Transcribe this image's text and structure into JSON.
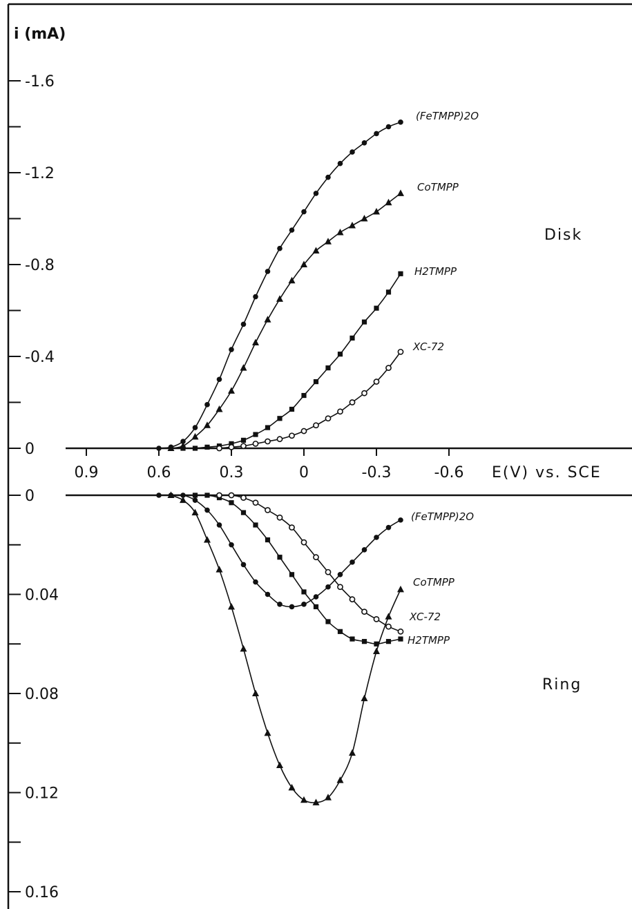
{
  "chart_data": [
    {
      "panel": "Disk",
      "type": "line",
      "title": "Disk",
      "ylabel": "i (mA)",
      "xlabel": "E(V) vs. SCE",
      "x_ticks": [
        "0.9",
        "0.6",
        "0.3",
        "0",
        "-0.3",
        "-0.6"
      ],
      "y_ticks": [
        "-1.6",
        "-1.2",
        "-0.8",
        "-0.4",
        "0"
      ],
      "xlim": [
        1.0,
        -0.9
      ],
      "ylim": [
        0,
        -1.7
      ],
      "series": [
        {
          "name": "(FeTMPP)2O",
          "marker": "filled-circle",
          "x": [
            0.6,
            0.55,
            0.5,
            0.45,
            0.4,
            0.35,
            0.3,
            0.25,
            0.2,
            0.15,
            0.1,
            0.05,
            0.0,
            -0.05,
            -0.1,
            -0.15,
            -0.2,
            -0.25,
            -0.3,
            -0.35,
            -0.4
          ],
          "y": [
            0.0,
            -0.005,
            -0.03,
            -0.09,
            -0.19,
            -0.3,
            -0.43,
            -0.54,
            -0.66,
            -0.77,
            -0.87,
            -0.95,
            -1.03,
            -1.11,
            -1.18,
            -1.24,
            -1.29,
            -1.33,
            -1.37,
            -1.4,
            -1.42
          ]
        },
        {
          "name": "CoTMPP",
          "marker": "filled-triangle",
          "x": [
            0.55,
            0.5,
            0.45,
            0.4,
            0.35,
            0.3,
            0.25,
            0.2,
            0.15,
            0.1,
            0.05,
            0.0,
            -0.05,
            -0.1,
            -0.15,
            -0.2,
            -0.25,
            -0.3,
            -0.35,
            -0.4
          ],
          "y": [
            0.0,
            -0.01,
            -0.05,
            -0.1,
            -0.17,
            -0.25,
            -0.35,
            -0.46,
            -0.56,
            -0.65,
            -0.73,
            -0.8,
            -0.86,
            -0.9,
            -0.94,
            -0.97,
            -1.0,
            -1.03,
            -1.07,
            -1.11
          ]
        },
        {
          "name": "H2TMPP",
          "marker": "filled-square",
          "x": [
            0.5,
            0.45,
            0.4,
            0.35,
            0.3,
            0.25,
            0.2,
            0.15,
            0.1,
            0.05,
            0.0,
            -0.05,
            -0.1,
            -0.15,
            -0.2,
            -0.25,
            -0.3,
            -0.35,
            -0.4
          ],
          "y": [
            0.0,
            0.0,
            -0.005,
            -0.01,
            -0.02,
            -0.035,
            -0.06,
            -0.09,
            -0.13,
            -0.17,
            -0.23,
            -0.29,
            -0.35,
            -0.41,
            -0.48,
            -0.55,
            -0.61,
            -0.68,
            -0.76
          ]
        },
        {
          "name": "XC-72",
          "marker": "open-circle",
          "x": [
            0.35,
            0.3,
            0.25,
            0.2,
            0.15,
            0.1,
            0.05,
            0.0,
            -0.05,
            -0.1,
            -0.15,
            -0.2,
            -0.25,
            -0.3,
            -0.35,
            -0.4
          ],
          "y": [
            0.0,
            -0.005,
            -0.01,
            -0.02,
            -0.03,
            -0.04,
            -0.055,
            -0.075,
            -0.1,
            -0.13,
            -0.16,
            -0.2,
            -0.24,
            -0.29,
            -0.35,
            -0.42
          ]
        }
      ]
    },
    {
      "panel": "Ring",
      "type": "line",
      "title": "Ring",
      "ylabel": "i (mA)",
      "xlabel": "E(V) vs. SCE",
      "y_ticks": [
        "0",
        "0.04",
        "0.08",
        "0.12",
        "0.16"
      ],
      "xlim": [
        1.0,
        -0.9
      ],
      "ylim": [
        0,
        0.175
      ],
      "series": [
        {
          "name": "(FeTMPP)2O",
          "marker": "filled-circle",
          "x": [
            0.6,
            0.55,
            0.5,
            0.45,
            0.4,
            0.35,
            0.3,
            0.25,
            0.2,
            0.15,
            0.1,
            0.05,
            0.0,
            -0.05,
            -0.1,
            -0.15,
            -0.2,
            -0.25,
            -0.3,
            -0.35,
            -0.4
          ],
          "y": [
            0.0,
            0.0,
            0.0,
            0.002,
            0.006,
            0.012,
            0.02,
            0.028,
            0.035,
            0.04,
            0.044,
            0.045,
            0.044,
            0.041,
            0.037,
            0.032,
            0.027,
            0.022,
            0.017,
            0.013,
            0.01
          ]
        },
        {
          "name": "CoTMPP",
          "marker": "filled-triangle",
          "x": [
            0.55,
            0.5,
            0.45,
            0.4,
            0.35,
            0.3,
            0.25,
            0.2,
            0.15,
            0.1,
            0.05,
            0.0,
            -0.05,
            -0.1,
            -0.15,
            -0.2,
            -0.25,
            -0.3,
            -0.35,
            -0.4
          ],
          "y": [
            0.0,
            0.002,
            0.007,
            0.018,
            0.03,
            0.045,
            0.062,
            0.08,
            0.096,
            0.109,
            0.118,
            0.123,
            0.124,
            0.122,
            0.115,
            0.104,
            0.082,
            0.063,
            0.049,
            0.038
          ]
        },
        {
          "name": "H2TMPP",
          "marker": "filled-square",
          "x": [
            0.45,
            0.4,
            0.35,
            0.3,
            0.25,
            0.2,
            0.15,
            0.1,
            0.05,
            0.0,
            -0.05,
            -0.1,
            -0.15,
            -0.2,
            -0.25,
            -0.3,
            -0.35,
            -0.4
          ],
          "y": [
            0.0,
            0.0,
            0.001,
            0.003,
            0.007,
            0.012,
            0.018,
            0.025,
            0.032,
            0.039,
            0.045,
            0.051,
            0.055,
            0.058,
            0.059,
            0.06,
            0.059,
            0.058
          ]
        },
        {
          "name": "XC-72",
          "marker": "open-circle",
          "x": [
            0.35,
            0.3,
            0.25,
            0.2,
            0.15,
            0.1,
            0.05,
            0.0,
            -0.05,
            -0.1,
            -0.15,
            -0.2,
            -0.25,
            -0.3,
            -0.35,
            -0.4
          ],
          "y": [
            0.0,
            0.0,
            0.001,
            0.003,
            0.006,
            0.009,
            0.013,
            0.019,
            0.025,
            0.031,
            0.037,
            0.042,
            0.047,
            0.05,
            0.053,
            0.055
          ]
        }
      ]
    }
  ],
  "labels": {
    "y_axis": "i (mA)",
    "x_axis": "E(V) vs. SCE",
    "disk": "Disk",
    "ring": "Ring",
    "disk_series": [
      "(FeTMPP)2O",
      "CoTMPP",
      "H2TMPP",
      "XC-72"
    ],
    "ring_series": [
      "(FeTMPP)2O",
      "CoTMPP",
      "XC-72",
      "H2TMPP"
    ]
  }
}
